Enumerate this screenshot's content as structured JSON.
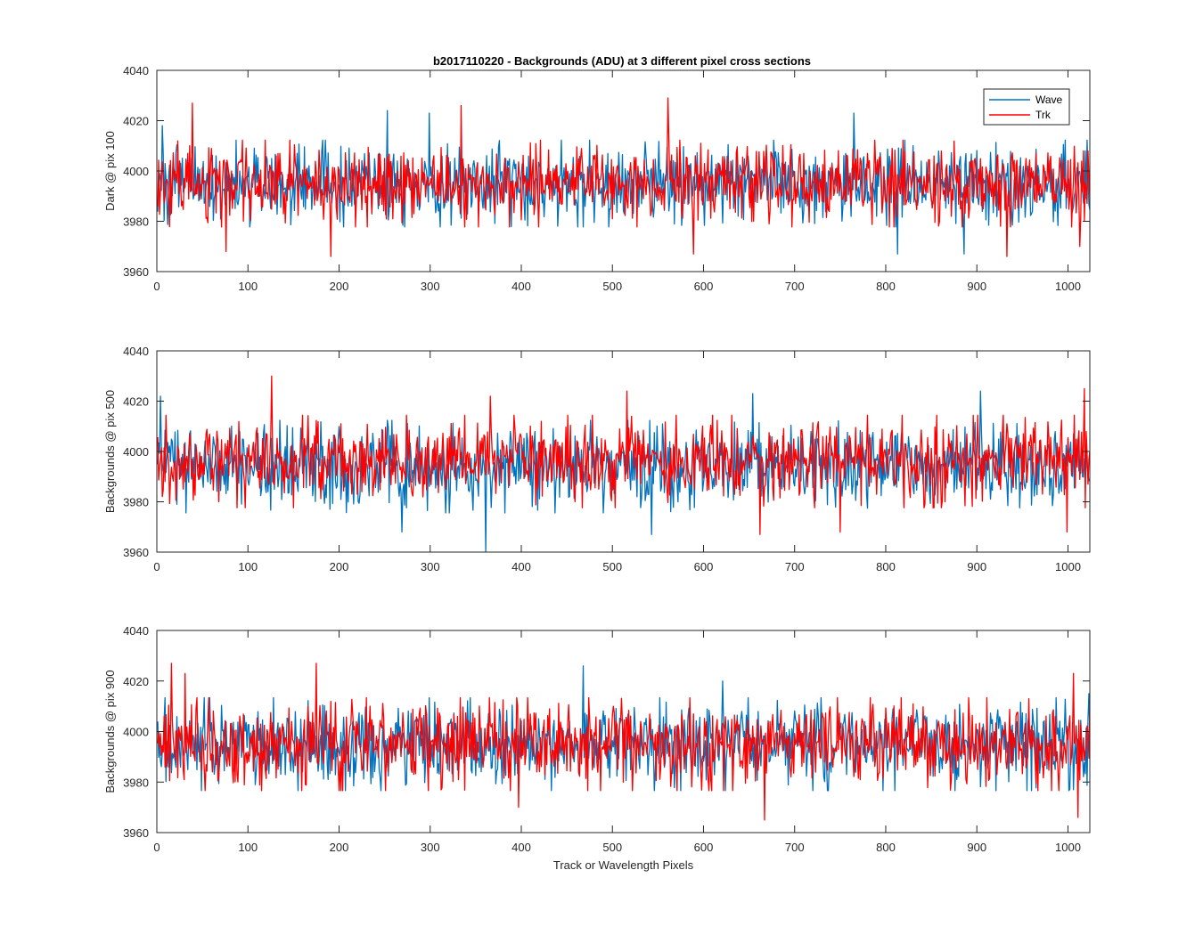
{
  "figure_title": "b2017110220 - Backgrounds (ADU) at 3 different pixel cross sections",
  "legend": {
    "entries": [
      "Wave",
      "Trk"
    ],
    "placement": "top-right of first panel"
  },
  "colors": {
    "wave": "#0072BD",
    "trk": "#FF0000",
    "axes": "#262626"
  },
  "chart_data": [
    {
      "type": "line",
      "title": "b2017110220 - Backgrounds (ADU) at 3 different pixel cross sections",
      "xlabel": "",
      "ylabel": "Dark @ pix 100",
      "xlim": [
        0,
        1024
      ],
      "ylim": [
        3960,
        4040
      ],
      "xticks": [
        0,
        100,
        200,
        300,
        400,
        500,
        600,
        700,
        800,
        900,
        1000
      ],
      "yticks": [
        3960,
        3980,
        4000,
        4020,
        4040
      ],
      "n_points": 1024,
      "series": [
        {
          "name": "Wave",
          "mean": 3995,
          "std": 7.5,
          "seed": 101,
          "spikes": [
            [
              5,
              4018
            ],
            [
              252,
              4024
            ],
            [
              298,
              4023
            ],
            [
              764,
              4023
            ],
            [
              812,
              3967
            ],
            [
              885,
              3967
            ],
            [
              1018,
              4008
            ]
          ]
        },
        {
          "name": "Trk",
          "mean": 3995,
          "std": 7.5,
          "seed": 202,
          "spikes": [
            [
              38,
              4027
            ],
            [
              75,
              3968
            ],
            [
              190,
              3966
            ],
            [
              333,
              4026
            ],
            [
              560,
              4029
            ],
            [
              588,
              3967
            ],
            [
              932,
              3966
            ],
            [
              1012,
              3970
            ]
          ]
        }
      ]
    },
    {
      "type": "line",
      "xlabel": "",
      "ylabel": "Backgrounds @ pix 500",
      "xlim": [
        0,
        1024
      ],
      "ylim": [
        3960,
        4040
      ],
      "xticks": [
        0,
        100,
        200,
        300,
        400,
        500,
        600,
        700,
        800,
        900,
        1000
      ],
      "yticks": [
        3960,
        3980,
        4000,
        4020,
        4040
      ],
      "n_points": 1024,
      "series": [
        {
          "name": "Wave",
          "mean": 3994,
          "std": 8,
          "seed": 303,
          "spikes": [
            [
              3,
              4022
            ],
            [
              268,
              3968
            ],
            [
              360,
              3960
            ],
            [
              542,
              3967
            ],
            [
              653,
              4023
            ],
            [
              903,
              4024
            ]
          ]
        },
        {
          "name": "Trk",
          "mean": 3996,
          "std": 8,
          "seed": 404,
          "spikes": [
            [
              125,
              4030
            ],
            [
              365,
              4022
            ],
            [
              515,
              4024
            ],
            [
              661,
              3967
            ],
            [
              749,
              3968
            ],
            [
              998,
              3968
            ],
            [
              1017,
              4025
            ]
          ]
        }
      ]
    },
    {
      "type": "line",
      "xlabel": "Track or Wavelength Pixels",
      "ylabel": "Backgrounds @ pix 900",
      "xlim": [
        0,
        1024
      ],
      "ylim": [
        3960,
        4040
      ],
      "xticks": [
        0,
        100,
        200,
        300,
        400,
        500,
        600,
        700,
        800,
        900,
        1000
      ],
      "yticks": [
        3960,
        3980,
        4000,
        4020,
        4040
      ],
      "n_points": 1024,
      "series": [
        {
          "name": "Wave",
          "mean": 3995,
          "std": 8,
          "seed": 505,
          "spikes": [
            [
              467,
              4026
            ],
            [
              620,
              4020
            ],
            [
              1022,
              4015
            ]
          ]
        },
        {
          "name": "Trk",
          "mean": 3995,
          "std": 8,
          "seed": 606,
          "spikes": [
            [
              15,
              4027
            ],
            [
              30,
              4023
            ],
            [
              174,
              4027
            ],
            [
              396,
              3970
            ],
            [
              666,
              3965
            ],
            [
              1005,
              4023
            ],
            [
              1010,
              3966
            ]
          ]
        }
      ]
    }
  ]
}
